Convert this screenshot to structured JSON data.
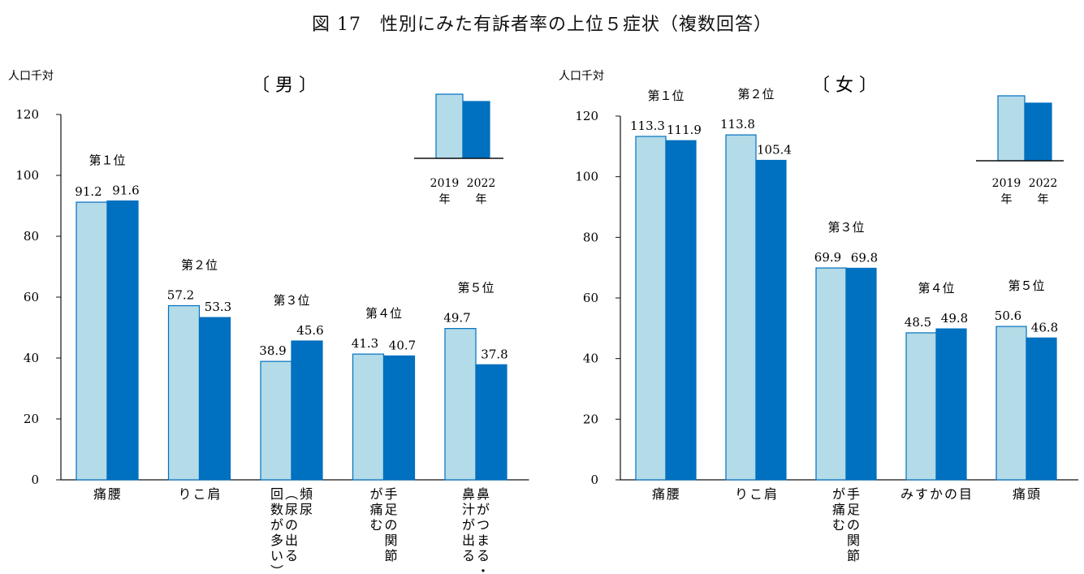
{
  "figure_title": "図 17　性別にみた有訴者率の上位５症状（複数回答）",
  "colors": {
    "y2019": "#b4dbe8",
    "y2022": "#0070c0",
    "outline": "#0070c0"
  },
  "chart_data": [
    {
      "type": "bar",
      "title": "〔 男 〕",
      "unit_label": "人口千対",
      "ylim": [
        0,
        120
      ],
      "yticks": [
        "0",
        "20",
        "40",
        "60",
        "80",
        "100",
        "120"
      ],
      "legend_labels": [
        [
          "2019",
          "年"
        ],
        [
          "2022",
          "年"
        ]
      ],
      "groups": [
        {
          "rank": "第１位",
          "category": [
            "腰",
            "痛"
          ],
          "values": [
            91.2,
            91.6
          ],
          "labels": [
            "91.2",
            "91.6"
          ]
        },
        {
          "rank": "第２位",
          "category": [
            "肩",
            "こ",
            "り"
          ],
          "values": [
            57.2,
            53.3
          ],
          "labels": [
            "57.2",
            "53.3"
          ]
        },
        {
          "rank": "第３位",
          "category": [
            "頻尿",
            "（尿の出る",
            "回数が多い）"
          ],
          "values": [
            38.9,
            45.6
          ],
          "labels": [
            "38.9",
            "45.6"
          ]
        },
        {
          "rank": "第４位",
          "category": [
            "手足の関節",
            "が痛む"
          ],
          "values": [
            41.3,
            40.7
          ],
          "labels": [
            "41.3",
            "40.7"
          ]
        },
        {
          "rank": "第５位",
          "category": [
            "鼻がつまる・",
            "鼻汁が出る"
          ],
          "values": [
            49.7,
            37.8
          ],
          "labels": [
            "49.7",
            "37.8"
          ]
        }
      ]
    },
    {
      "type": "bar",
      "title": "〔 女 〕",
      "unit_label": "人口千対",
      "ylim": [
        0,
        120
      ],
      "yticks": [
        "0",
        "20",
        "40",
        "60",
        "80",
        "100",
        "120"
      ],
      "legend_labels": [
        [
          "2019",
          "年"
        ],
        [
          "2022",
          "年"
        ]
      ],
      "groups": [
        {
          "rank": "第１位",
          "category": [
            "腰",
            "痛"
          ],
          "values": [
            113.3,
            111.9
          ],
          "labels": [
            "113.3",
            "111.9"
          ]
        },
        {
          "rank": "第２位",
          "category": [
            "肩",
            "こ",
            "り"
          ],
          "values": [
            113.8,
            105.4
          ],
          "labels": [
            "113.8",
            "105.4"
          ]
        },
        {
          "rank": "第３位",
          "category": [
            "手足の関節",
            "が痛む"
          ],
          "values": [
            69.9,
            69.8
          ],
          "labels": [
            "69.9",
            "69.8"
          ]
        },
        {
          "rank": "第４位",
          "category": [
            "目",
            "の",
            "か",
            "す",
            "み"
          ],
          "values": [
            48.5,
            49.8
          ],
          "labels": [
            "48.5",
            "49.8"
          ]
        },
        {
          "rank": "第５位",
          "category": [
            "頭",
            "痛"
          ],
          "values": [
            50.6,
            46.8
          ],
          "labels": [
            "50.6",
            "46.8"
          ]
        }
      ]
    }
  ]
}
